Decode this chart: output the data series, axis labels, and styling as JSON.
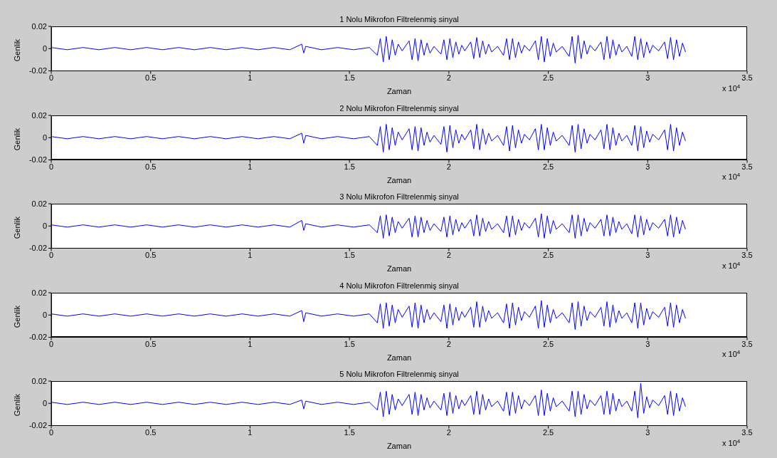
{
  "chart_data": [
    {
      "type": "line",
      "title": "1 Nolu Mikrofon Filtrelenmiş sinyal",
      "xlabel": "Zaman",
      "ylabel": "Genlik",
      "annotations": [
        "x 10$^{4}$"
      ],
      "xlim": [
        0,
        3.5
      ],
      "xticks": [
        0,
        0.5,
        1,
        1.5,
        2,
        2.5,
        3,
        3.5
      ],
      "ylim": [
        -0.02,
        0.02
      ],
      "yticks": [
        -0.02,
        0,
        0.02
      ],
      "x": [
        0,
        0.08,
        0.16,
        0.24,
        0.32,
        0.4,
        0.48,
        0.56,
        0.64,
        0.72,
        0.8,
        0.88,
        0.96,
        1.04,
        1.12,
        1.2,
        1.26,
        1.27,
        1.28,
        1.36,
        1.44,
        1.52,
        1.6,
        1.64,
        1.655,
        1.67,
        1.685,
        1.7,
        1.715,
        1.73,
        1.745,
        1.765,
        1.8,
        1.815,
        1.83,
        1.845,
        1.86,
        1.875,
        1.89,
        1.905,
        1.925,
        1.96,
        1.975,
        1.99,
        2.005,
        2.02,
        2.035,
        2.05,
        2.065,
        2.08,
        2.11,
        2.125,
        2.14,
        2.155,
        2.17,
        2.185,
        2.2,
        2.215,
        2.245,
        2.275,
        2.29,
        2.305,
        2.32,
        2.335,
        2.35,
        2.365,
        2.38,
        2.405,
        2.435,
        2.45,
        2.465,
        2.48,
        2.495,
        2.51,
        2.525,
        2.54,
        2.57,
        2.605,
        2.62,
        2.635,
        2.65,
        2.665,
        2.68,
        2.695,
        2.71,
        2.735,
        2.765,
        2.78,
        2.795,
        2.81,
        2.825,
        2.84,
        2.855,
        2.87,
        2.895,
        2.92,
        2.935,
        2.95,
        2.965,
        2.98,
        2.995,
        3.01,
        3.025,
        3.055,
        3.085,
        3.1,
        3.115,
        3.13,
        3.145,
        3.16,
        3.175,
        3.19
      ],
      "series": [
        {
          "color": "#0000ff",
          "values": [
            0.001,
            -0.001,
            0.001,
            -0.001,
            0.001,
            -0.001,
            0.001,
            -0.001,
            0.001,
            -0.001,
            0.001,
            -0.001,
            0.001,
            -0.001,
            0.001,
            -0.001,
            0.004,
            -0.004,
            0.002,
            -0.001,
            0.001,
            -0.001,
            0.001,
            -0.006,
            0.009,
            -0.012,
            0.011,
            -0.01,
            0.008,
            -0.006,
            0.004,
            -0.002,
            0.007,
            -0.01,
            0.009,
            -0.011,
            0.008,
            -0.006,
            0.005,
            -0.004,
            0.002,
            -0.005,
            0.008,
            -0.01,
            0.009,
            -0.008,
            0.006,
            -0.005,
            0.003,
            -0.002,
            0.006,
            -0.009,
            0.01,
            -0.008,
            0.007,
            -0.005,
            0.004,
            -0.003,
            0.002,
            -0.006,
            0.009,
            -0.01,
            0.009,
            -0.008,
            0.006,
            -0.004,
            0.003,
            -0.002,
            0.007,
            -0.01,
            0.011,
            -0.012,
            0.009,
            -0.007,
            0.005,
            -0.003,
            0.002,
            -0.007,
            0.011,
            -0.013,
            0.012,
            -0.009,
            0.007,
            -0.005,
            0.003,
            -0.002,
            0.006,
            -0.01,
            0.011,
            -0.009,
            0.008,
            -0.006,
            0.004,
            -0.003,
            0.002,
            -0.007,
            0.011,
            -0.01,
            0.009,
            -0.008,
            0.006,
            -0.004,
            0.003,
            -0.002,
            0.006,
            -0.009,
            0.01,
            -0.01,
            0.008,
            -0.007,
            0.005,
            -0.003
          ]
        }
      ]
    },
    {
      "type": "line",
      "title": "2 Nolu Mikrofon Filtrelenmiş sinyal",
      "xlabel": "Zaman",
      "ylabel": "Genlik",
      "annotations": [
        "x 10$^{4}$"
      ],
      "xlim": [
        0,
        3.5
      ],
      "xticks": [
        0,
        0.5,
        1,
        1.5,
        2,
        2.5,
        3,
        3.5
      ],
      "ylim": [
        -0.02,
        0.02
      ],
      "yticks": [
        -0.02,
        0,
        0.02
      ],
      "x": [
        0,
        0.08,
        0.16,
        0.24,
        0.32,
        0.4,
        0.48,
        0.56,
        0.64,
        0.72,
        0.8,
        0.88,
        0.96,
        1.04,
        1.12,
        1.2,
        1.26,
        1.27,
        1.28,
        1.36,
        1.44,
        1.52,
        1.6,
        1.64,
        1.655,
        1.67,
        1.685,
        1.7,
        1.715,
        1.73,
        1.745,
        1.765,
        1.8,
        1.815,
        1.83,
        1.845,
        1.86,
        1.875,
        1.89,
        1.905,
        1.925,
        1.96,
        1.975,
        1.99,
        2.005,
        2.02,
        2.035,
        2.05,
        2.065,
        2.08,
        2.11,
        2.125,
        2.14,
        2.155,
        2.17,
        2.185,
        2.2,
        2.215,
        2.245,
        2.275,
        2.29,
        2.305,
        2.32,
        2.335,
        2.35,
        2.365,
        2.38,
        2.405,
        2.435,
        2.45,
        2.465,
        2.48,
        2.495,
        2.51,
        2.525,
        2.54,
        2.57,
        2.605,
        2.62,
        2.635,
        2.65,
        2.665,
        2.68,
        2.695,
        2.71,
        2.735,
        2.765,
        2.78,
        2.795,
        2.81,
        2.825,
        2.84,
        2.855,
        2.87,
        2.895,
        2.92,
        2.935,
        2.95,
        2.965,
        2.98,
        2.995,
        3.01,
        3.025,
        3.055,
        3.085,
        3.1,
        3.115,
        3.13,
        3.145,
        3.16,
        3.175,
        3.19
      ],
      "series": [
        {
          "color": "#0000ff",
          "values": [
            0.001,
            -0.001,
            0.001,
            -0.001,
            0.001,
            -0.001,
            0.001,
            -0.001,
            0.001,
            -0.001,
            0.001,
            -0.001,
            0.001,
            -0.001,
            0.001,
            -0.001,
            0.004,
            -0.005,
            0.002,
            -0.001,
            0.001,
            -0.001,
            0.001,
            -0.007,
            0.01,
            -0.013,
            0.012,
            -0.011,
            0.009,
            -0.007,
            0.005,
            -0.002,
            0.008,
            -0.011,
            0.01,
            -0.012,
            0.009,
            -0.007,
            0.005,
            -0.004,
            0.002,
            -0.006,
            0.01,
            -0.013,
            0.011,
            -0.009,
            0.007,
            -0.005,
            0.003,
            -0.002,
            0.007,
            -0.01,
            0.012,
            -0.011,
            0.008,
            -0.006,
            0.004,
            -0.003,
            0.002,
            -0.007,
            0.01,
            -0.012,
            0.011,
            -0.009,
            0.007,
            -0.005,
            0.003,
            -0.002,
            0.008,
            -0.011,
            0.012,
            -0.011,
            0.009,
            -0.007,
            0.005,
            -0.003,
            0.002,
            -0.007,
            0.011,
            -0.013,
            0.012,
            -0.01,
            0.008,
            -0.005,
            0.003,
            -0.002,
            0.007,
            -0.01,
            0.012,
            -0.011,
            0.009,
            -0.007,
            0.004,
            -0.003,
            0.002,
            -0.007,
            0.011,
            -0.012,
            0.01,
            -0.009,
            0.006,
            -0.004,
            0.003,
            -0.002,
            0.007,
            -0.011,
            0.012,
            -0.012,
            0.009,
            -0.007,
            0.005,
            -0.003
          ]
        }
      ]
    },
    {
      "type": "line",
      "title": "3 Nolu Mikrofon Filtrelenmiş sinyal",
      "xlabel": "Zaman",
      "ylabel": "Genlik",
      "annotations": [
        "x 10$^{4}$"
      ],
      "xlim": [
        0,
        3.5
      ],
      "xticks": [
        0,
        0.5,
        1,
        1.5,
        2,
        2.5,
        3,
        3.5
      ],
      "ylim": [
        -0.02,
        0.02
      ],
      "yticks": [
        -0.02,
        0,
        0.02
      ],
      "x": [
        0,
        0.08,
        0.16,
        0.24,
        0.32,
        0.4,
        0.48,
        0.56,
        0.64,
        0.72,
        0.8,
        0.88,
        0.96,
        1.04,
        1.12,
        1.2,
        1.26,
        1.27,
        1.28,
        1.36,
        1.44,
        1.52,
        1.6,
        1.64,
        1.655,
        1.67,
        1.685,
        1.7,
        1.715,
        1.73,
        1.745,
        1.765,
        1.8,
        1.815,
        1.83,
        1.845,
        1.86,
        1.875,
        1.89,
        1.905,
        1.925,
        1.96,
        1.975,
        1.99,
        2.005,
        2.02,
        2.035,
        2.05,
        2.065,
        2.08,
        2.11,
        2.125,
        2.14,
        2.155,
        2.17,
        2.185,
        2.2,
        2.215,
        2.245,
        2.275,
        2.29,
        2.305,
        2.32,
        2.335,
        2.35,
        2.365,
        2.38,
        2.405,
        2.435,
        2.45,
        2.465,
        2.48,
        2.495,
        2.51,
        2.525,
        2.54,
        2.57,
        2.605,
        2.62,
        2.635,
        2.65,
        2.665,
        2.68,
        2.695,
        2.71,
        2.735,
        2.765,
        2.78,
        2.795,
        2.81,
        2.825,
        2.84,
        2.855,
        2.87,
        2.895,
        2.92,
        2.935,
        2.95,
        2.965,
        2.98,
        2.995,
        3.01,
        3.025,
        3.055,
        3.085,
        3.1,
        3.115,
        3.13,
        3.145,
        3.16,
        3.175,
        3.19
      ],
      "series": [
        {
          "color": "#0000ff",
          "values": [
            0.001,
            -0.001,
            0.001,
            -0.001,
            0.001,
            -0.001,
            0.001,
            -0.001,
            0.001,
            -0.001,
            0.001,
            -0.001,
            0.001,
            -0.001,
            0.001,
            -0.001,
            0.005,
            -0.004,
            0.002,
            -0.001,
            0.001,
            -0.001,
            0.001,
            -0.006,
            0.009,
            -0.011,
            0.01,
            -0.009,
            0.008,
            -0.006,
            0.004,
            -0.002,
            0.007,
            -0.01,
            0.009,
            -0.01,
            0.008,
            -0.006,
            0.005,
            -0.004,
            0.002,
            -0.005,
            0.008,
            -0.01,
            0.009,
            -0.008,
            0.006,
            -0.005,
            0.003,
            -0.002,
            0.006,
            -0.009,
            0.01,
            -0.009,
            0.007,
            -0.005,
            0.004,
            -0.003,
            0.002,
            -0.006,
            0.009,
            -0.01,
            0.009,
            -0.008,
            0.006,
            -0.004,
            0.003,
            -0.002,
            0.007,
            -0.01,
            0.011,
            -0.011,
            0.009,
            -0.007,
            0.005,
            -0.003,
            0.002,
            -0.006,
            0.01,
            -0.011,
            0.01,
            -0.009,
            0.007,
            -0.005,
            0.003,
            -0.002,
            0.006,
            -0.009,
            0.01,
            -0.009,
            0.008,
            -0.006,
            0.004,
            -0.003,
            0.002,
            -0.007,
            0.01,
            -0.01,
            0.009,
            -0.008,
            0.006,
            -0.004,
            0.003,
            -0.002,
            0.006,
            -0.009,
            0.01,
            -0.01,
            0.008,
            -0.007,
            0.005,
            -0.003
          ]
        }
      ]
    },
    {
      "type": "line",
      "title": "4 Nolu Mikrofon Filtrelenmiş sinyal",
      "xlabel": "Zaman",
      "ylabel": "Genlik",
      "annotations": [
        "x 10$^{4}$"
      ],
      "xlim": [
        0,
        3.5
      ],
      "xticks": [
        0,
        0.5,
        1,
        1.5,
        2,
        2.5,
        3,
        3.5
      ],
      "ylim": [
        -0.02,
        0.02
      ],
      "yticks": [
        -0.02,
        0,
        0.02
      ],
      "x": [
        0,
        0.08,
        0.16,
        0.24,
        0.32,
        0.4,
        0.48,
        0.56,
        0.64,
        0.72,
        0.8,
        0.88,
        0.96,
        1.04,
        1.12,
        1.2,
        1.26,
        1.27,
        1.28,
        1.36,
        1.44,
        1.52,
        1.6,
        1.64,
        1.655,
        1.67,
        1.685,
        1.7,
        1.715,
        1.73,
        1.745,
        1.765,
        1.8,
        1.815,
        1.83,
        1.845,
        1.86,
        1.875,
        1.89,
        1.905,
        1.925,
        1.96,
        1.975,
        1.99,
        2.005,
        2.02,
        2.035,
        2.05,
        2.065,
        2.08,
        2.11,
        2.125,
        2.14,
        2.155,
        2.17,
        2.185,
        2.2,
        2.215,
        2.245,
        2.275,
        2.29,
        2.305,
        2.32,
        2.335,
        2.35,
        2.365,
        2.38,
        2.405,
        2.435,
        2.45,
        2.465,
        2.48,
        2.495,
        2.51,
        2.525,
        2.54,
        2.57,
        2.605,
        2.62,
        2.635,
        2.65,
        2.665,
        2.68,
        2.695,
        2.71,
        2.735,
        2.765,
        2.78,
        2.795,
        2.81,
        2.825,
        2.84,
        2.855,
        2.87,
        2.895,
        2.92,
        2.935,
        2.95,
        2.965,
        2.98,
        2.995,
        3.01,
        3.025,
        3.055,
        3.085,
        3.1,
        3.115,
        3.13,
        3.145,
        3.16,
        3.175,
        3.19
      ],
      "series": [
        {
          "color": "#0000ff",
          "values": [
            0.001,
            -0.001,
            0.001,
            -0.001,
            0.001,
            -0.001,
            0.001,
            -0.001,
            0.001,
            -0.001,
            0.001,
            -0.001,
            0.001,
            -0.001,
            0.001,
            -0.001,
            0.004,
            -0.006,
            0.002,
            -0.001,
            0.001,
            -0.001,
            0.001,
            -0.007,
            0.01,
            -0.012,
            0.011,
            -0.01,
            0.009,
            -0.007,
            0.005,
            -0.002,
            0.008,
            -0.011,
            0.011,
            -0.012,
            0.009,
            -0.007,
            0.005,
            -0.004,
            0.002,
            -0.006,
            0.009,
            -0.012,
            0.01,
            -0.009,
            0.007,
            -0.005,
            0.003,
            -0.002,
            0.007,
            -0.011,
            0.012,
            -0.011,
            0.008,
            -0.006,
            0.004,
            -0.003,
            0.002,
            -0.007,
            0.01,
            -0.012,
            0.011,
            -0.009,
            0.007,
            -0.005,
            0.003,
            -0.002,
            0.008,
            -0.012,
            0.013,
            -0.011,
            0.009,
            -0.007,
            0.005,
            -0.003,
            0.002,
            -0.007,
            0.011,
            -0.013,
            0.012,
            -0.01,
            0.008,
            -0.005,
            0.003,
            -0.002,
            0.007,
            -0.01,
            0.012,
            -0.011,
            0.009,
            -0.007,
            0.004,
            -0.003,
            0.002,
            -0.007,
            0.011,
            -0.012,
            0.011,
            -0.009,
            0.006,
            -0.004,
            0.003,
            -0.002,
            0.007,
            -0.01,
            0.011,
            -0.011,
            0.009,
            -0.007,
            0.005,
            -0.003
          ]
        }
      ]
    },
    {
      "type": "line",
      "title": "5 Nolu Mikrofon Filtrelenmiş sinyal",
      "xlabel": "Zaman",
      "ylabel": "Genlik",
      "annotations": [
        "x 10$^{4}$"
      ],
      "xlim": [
        0,
        3.5
      ],
      "xticks": [
        0,
        0.5,
        1,
        1.5,
        2,
        2.5,
        3,
        3.5
      ],
      "ylim": [
        -0.02,
        0.02
      ],
      "yticks": [
        -0.02,
        0,
        0.02
      ],
      "x": [
        0,
        0.08,
        0.16,
        0.24,
        0.32,
        0.4,
        0.48,
        0.56,
        0.64,
        0.72,
        0.8,
        0.88,
        0.96,
        1.04,
        1.12,
        1.2,
        1.26,
        1.27,
        1.28,
        1.36,
        1.44,
        1.52,
        1.6,
        1.64,
        1.655,
        1.67,
        1.685,
        1.7,
        1.715,
        1.73,
        1.745,
        1.765,
        1.8,
        1.815,
        1.83,
        1.845,
        1.86,
        1.875,
        1.89,
        1.905,
        1.925,
        1.96,
        1.975,
        1.99,
        2.005,
        2.02,
        2.035,
        2.05,
        2.065,
        2.08,
        2.11,
        2.125,
        2.14,
        2.155,
        2.17,
        2.185,
        2.2,
        2.215,
        2.245,
        2.275,
        2.29,
        2.305,
        2.32,
        2.335,
        2.35,
        2.365,
        2.38,
        2.405,
        2.435,
        2.45,
        2.465,
        2.48,
        2.495,
        2.51,
        2.525,
        2.54,
        2.57,
        2.605,
        2.62,
        2.635,
        2.65,
        2.665,
        2.68,
        2.695,
        2.71,
        2.735,
        2.765,
        2.78,
        2.795,
        2.81,
        2.825,
        2.84,
        2.855,
        2.87,
        2.895,
        2.92,
        2.935,
        2.95,
        2.965,
        2.98,
        2.995,
        3.01,
        3.025,
        3.055,
        3.085,
        3.1,
        3.115,
        3.13,
        3.145,
        3.16,
        3.175,
        3.19
      ],
      "series": [
        {
          "color": "#0000ff",
          "values": [
            0.001,
            -0.001,
            0.001,
            -0.001,
            0.001,
            -0.001,
            0.001,
            -0.001,
            0.001,
            -0.001,
            0.001,
            -0.001,
            0.001,
            -0.001,
            0.001,
            -0.001,
            0.003,
            -0.005,
            0.002,
            -0.001,
            0.001,
            -0.001,
            0.001,
            -0.006,
            0.01,
            -0.012,
            0.011,
            -0.01,
            0.008,
            -0.006,
            0.004,
            -0.002,
            0.008,
            -0.01,
            0.01,
            -0.011,
            0.008,
            -0.006,
            0.005,
            -0.004,
            0.002,
            -0.006,
            0.009,
            -0.011,
            0.01,
            -0.009,
            0.007,
            -0.005,
            0.003,
            -0.002,
            0.007,
            -0.01,
            0.011,
            -0.01,
            0.008,
            -0.006,
            0.004,
            -0.003,
            0.002,
            -0.007,
            0.01,
            -0.011,
            0.01,
            -0.009,
            0.007,
            -0.005,
            0.003,
            -0.002,
            0.007,
            -0.011,
            0.012,
            -0.011,
            0.009,
            -0.007,
            0.005,
            -0.003,
            0.002,
            -0.007,
            0.011,
            -0.012,
            0.011,
            -0.01,
            0.008,
            -0.005,
            0.003,
            -0.002,
            0.007,
            -0.01,
            0.011,
            -0.01,
            0.009,
            -0.007,
            0.004,
            -0.003,
            0.002,
            -0.007,
            0.011,
            -0.013,
            0.018,
            -0.009,
            0.006,
            -0.004,
            0.003,
            -0.002,
            0.007,
            -0.01,
            0.011,
            -0.011,
            0.009,
            -0.007,
            0.005,
            -0.003
          ]
        }
      ]
    }
  ]
}
